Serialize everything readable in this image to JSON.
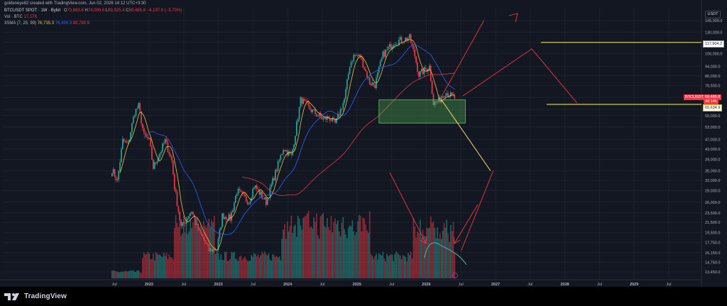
{
  "attribution": "goldeneye82 created with TradingView.com, Jun 02, 2026 14:12 UTC+3:30",
  "legend": {
    "symbol": "BTCUSDT SPOT · 1W · Bybit",
    "o_label": "O",
    "o_value": "73,683.6",
    "h_label": "H",
    "h_value": "74,089.6",
    "l_label": "L",
    "l_value": "69,325.4",
    "c_label": "C",
    "c_value": "69,485.8",
    "change": "−4,197.8 (−5.70%)",
    "vol_label": "Vol · BTC",
    "vol_value": "17.17K",
    "sma_label": "3SMA (7, 25, 99)",
    "sma_7": "76,735.3",
    "sma_25": "76,496.3",
    "sma_99": "88,780.9"
  },
  "currency": "USDT",
  "branding": "TradingView",
  "price_tags": {
    "symbol": "BTCUSDT",
    "last": "69,485.8",
    "countdown": "4d 14h",
    "level_top": "117,904.2",
    "level_bottom": "65,634.9"
  },
  "colors": {
    "background": "#131722",
    "bull": "#26a69a",
    "bear": "#f23645",
    "sma_7": "#e8c54a",
    "sma_25": "#2962ff",
    "sma_99": "#e03a45",
    "zone": "#5cc95c",
    "drawing_red": "#f23645",
    "drawing_yellow": "#fff176",
    "drawing_teal": "#4fb6ae"
  },
  "chart_data": {
    "type": "candlestick",
    "interval": "1W",
    "y_scale": "log",
    "ylim": [
      12500,
      150000
    ],
    "y_ticks": [
      "145,000.0",
      "130,000.0",
      "118,000.0",
      "106,000.0",
      "94,000.0",
      "86,000.0",
      "78,500.0",
      "70,000.0",
      "62,500.0",
      "59,000.0",
      "53,000.0",
      "47,000.0",
      "43,000.0",
      "39,000.0",
      "35,000.0",
      "32,000.0",
      "29,000.0",
      "26,000.0",
      "23,500.0",
      "21,500.0",
      "19,500.0",
      "17,750.0",
      "16,150.0",
      "14,750.0",
      "13,450.0"
    ],
    "x_ticks": [
      "Jul",
      "2022",
      "Jul",
      "2023",
      "Jul",
      "2024",
      "Jul",
      "2025",
      "Jul",
      "2026",
      "Jul",
      "2027",
      "Jul",
      "2028",
      "Jul",
      "2029",
      "Jul"
    ],
    "price_anchors": [
      [
        "2021-06-20",
        35500
      ],
      [
        "2021-07-18",
        31800
      ],
      [
        "2021-08-15",
        46500
      ],
      [
        "2021-09-12",
        45000
      ],
      [
        "2021-10-17",
        61000
      ],
      [
        "2021-11-07",
        64500
      ],
      [
        "2021-12-05",
        49000
      ],
      [
        "2022-01-02",
        46500
      ],
      [
        "2022-01-23",
        36000
      ],
      [
        "2022-03-27",
        46500
      ],
      [
        "2022-05-01",
        38500
      ],
      [
        "2022-05-15",
        30000
      ],
      [
        "2022-06-19",
        20500
      ],
      [
        "2022-08-14",
        24000
      ],
      [
        "2022-09-11",
        20500
      ],
      [
        "2022-11-13",
        16500
      ],
      [
        "2022-12-25",
        16700
      ],
      [
        "2023-01-22",
        23000
      ],
      [
        "2023-03-05",
        22300
      ],
      [
        "2023-04-09",
        29000
      ],
      [
        "2023-06-11",
        26000
      ],
      [
        "2023-07-09",
        30500
      ],
      [
        "2023-09-10",
        26000
      ],
      [
        "2023-10-29",
        34500
      ],
      [
        "2023-12-10",
        43500
      ],
      [
        "2024-01-21",
        40000
      ],
      [
        "2024-03-10",
        69000
      ],
      [
        "2024-05-05",
        62000
      ],
      [
        "2024-07-07",
        57000
      ],
      [
        "2024-08-04",
        58000
      ],
      [
        "2024-09-08",
        54500
      ],
      [
        "2024-10-27",
        69000
      ],
      [
        "2024-11-24",
        96000
      ],
      [
        "2024-12-15",
        104000
      ],
      [
        "2025-01-19",
        103000
      ],
      [
        "2025-03-09",
        80500
      ],
      [
        "2025-04-06",
        79000
      ],
      [
        "2025-05-18",
        105000
      ],
      [
        "2025-07-13",
        118000
      ],
      [
        "2025-08-10",
        120000
      ],
      [
        "2025-10-05",
        123000
      ],
      [
        "2025-11-02",
        104000
      ],
      [
        "2025-11-23",
        87000
      ],
      [
        "2026-01-18",
        94000
      ],
      [
        "2026-02-08",
        66000
      ],
      [
        "2026-03-08",
        68000
      ],
      [
        "2026-04-12",
        74000
      ],
      [
        "2026-05-31",
        69485.8
      ]
    ],
    "volume_profile": "relative weekly volume bars, peaks in mid 2022, early 2024 and early 2026",
    "sma_periods": [
      7,
      25,
      99
    ],
    "levels": [
      117904.2,
      65634.9
    ],
    "zone": {
      "from": "2025-04-27",
      "to": "2026-07-26",
      "low": 55000,
      "high": 68500
    },
    "projections": [
      {
        "color": "red",
        "points": [
          [
            "2026-03-01",
            66000
          ],
          [
            "2026-11-01",
            145000
          ]
        ]
      },
      {
        "color": "red",
        "points": [
          [
            "2026-07-12",
            71000
          ],
          [
            "2027-07-11",
            111000
          ],
          [
            "2028-03-05",
            66500
          ]
        ]
      },
      {
        "color": "yellow",
        "points": [
          [
            "2026-03-22",
            68500
          ],
          [
            "2026-12-06",
            35000
          ]
        ]
      },
      {
        "color": "red",
        "points": [
          [
            "2026-12-20",
            35000
          ],
          [
            "2026-07-05",
            16500
          ]
        ]
      }
    ]
  }
}
